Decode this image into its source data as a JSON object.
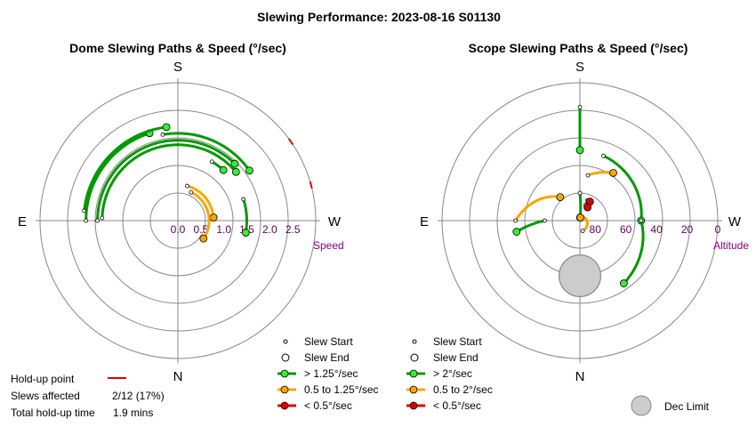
{
  "title": "Slewing Performance: 2023-08-16 S01130",
  "colors": {
    "green": "#009900",
    "green_marker": "#33ee33",
    "orange": "#f7a700",
    "red": "#dd0000",
    "ring": "#888888",
    "limit": "#cccccc"
  },
  "left_panel": {
    "subtitle": "Dome Slewing Paths & Speed (°/sec)",
    "compass": {
      "top": "S",
      "bottom": "N",
      "left": "E",
      "right": "W"
    },
    "axis_label": "Speed",
    "ticks": [
      "2.5",
      "2.0",
      "1.5",
      "1.0",
      "0.5",
      "0.0"
    ],
    "legend": {
      "start": "Slew Start",
      "end": "Slew End",
      "fast": "> 1.25°/sec",
      "medium": "0.5 to 1.25°/sec",
      "slow": "< 0.5°/sec"
    }
  },
  "right_panel": {
    "subtitle": "Scope Slewing Paths & Speed (°/sec)",
    "compass": {
      "top": "S",
      "bottom": "N",
      "left": "E",
      "right": "W"
    },
    "axis_label": "Altitude",
    "ticks": [
      "80",
      "60",
      "40",
      "20",
      "0"
    ],
    "legend": {
      "start": "Slew Start",
      "end": "Slew End",
      "fast": "> 2°/sec",
      "medium": "0.5 to 2°/sec",
      "slow": "< 0.5°/sec"
    },
    "limit_label": "Dec Limit"
  },
  "footer": {
    "holdup_label": "Hold-up point",
    "affected_label": "Slews affected",
    "affected_value": "2/12 (17%)",
    "total_label": "Total hold-up time",
    "total_value": "1.9 mins"
  },
  "chart_data": [
    {
      "type": "scatter",
      "projection": "polar",
      "title": "Dome Slewing Paths & Speed (°/sec)",
      "radial_axis": {
        "label": "Speed",
        "range": [
          3.0,
          0.0
        ],
        "ticks": [
          2.5,
          2.0,
          1.5,
          1.0,
          0.5,
          0.0
        ]
      },
      "angular_axis": {
        "S": 0,
        "W": 90,
        "N": 180,
        "E": 270
      },
      "holdup_points": [
        {
          "azimuth": 55,
          "speed": 0.1
        },
        {
          "azimuth": 75,
          "speed": 0.1
        }
      ],
      "series": [
        {
          "category": "fast",
          "paths": [
            {
              "speed": 2.0,
              "az_start": 270,
              "az_end": 342
            },
            {
              "speed": 2.05,
              "az_start": 276,
              "az_end": 353
            },
            {
              "speed": 1.9,
              "az_start": 350,
              "az_end": 55
            },
            {
              "speed": 1.75,
              "az_start": 270,
              "az_end": 45
            },
            {
              "speed": 1.65,
              "az_start": 272,
              "az_end": 50
            },
            {
              "speed": 1.5,
              "az_start": 72,
              "az_end": 100
            },
            {
              "speed": 1.48,
              "az_start": 30,
              "az_end": 42
            }
          ]
        },
        {
          "category": "medium",
          "paths": [
            {
              "speed": 0.78,
              "az_start": 15,
              "az_end": 85
            },
            {
              "speed": 0.68,
              "az_start": 25,
              "az_end": 125
            }
          ]
        },
        {
          "category": "slow",
          "paths": []
        }
      ]
    },
    {
      "type": "scatter",
      "projection": "polar",
      "title": "Scope Slewing Paths & Speed (°/sec)",
      "radial_axis": {
        "label": "Altitude",
        "range": [
          90,
          0
        ],
        "ticks": [
          80,
          60,
          40,
          20,
          0
        ]
      },
      "angular_axis": {
        "S": 0,
        "W": 90,
        "N": 180,
        "E": 270
      },
      "dec_limit": {
        "azimuth": 180,
        "altitude": 54,
        "radius_deg": 13
      },
      "series": [
        {
          "category": "fast",
          "paths": [
            {
              "az_start": 0,
              "alt_start": 16,
              "az_end": 0,
              "alt_end": 44
            },
            {
              "az_start": 20,
              "alt_start": 45,
              "az_end": 90,
              "alt_end": 50
            },
            {
              "az_start": 90,
              "alt_start": 50,
              "az_end": 145,
              "alt_end": 40
            },
            {
              "az_start": 270,
              "alt_start": 67,
              "az_end": 260,
              "alt_end": 48
            },
            {
              "az_start": 0,
              "alt_start": 72,
              "az_end": 5,
              "alt_end": 88
            }
          ]
        },
        {
          "category": "medium",
          "paths": [
            {
              "az_start": 10,
              "alt_start": 60,
              "az_end": 35,
              "alt_end": 52
            },
            {
              "az_start": 270,
              "alt_start": 48,
              "az_end": 320,
              "alt_end": 70
            },
            {
              "az_start": 165,
              "alt_start": 83,
              "az_end": 10,
              "alt_end": 88
            }
          ]
        },
        {
          "category": "slow",
          "paths": [
            {
              "az_start": 20,
              "alt_start": 76,
              "az_end": 28,
              "alt_end": 76
            },
            {
              "az_start": 20,
              "alt_start": 79,
              "az_end": 30,
              "alt_end": 80
            }
          ]
        }
      ]
    }
  ]
}
